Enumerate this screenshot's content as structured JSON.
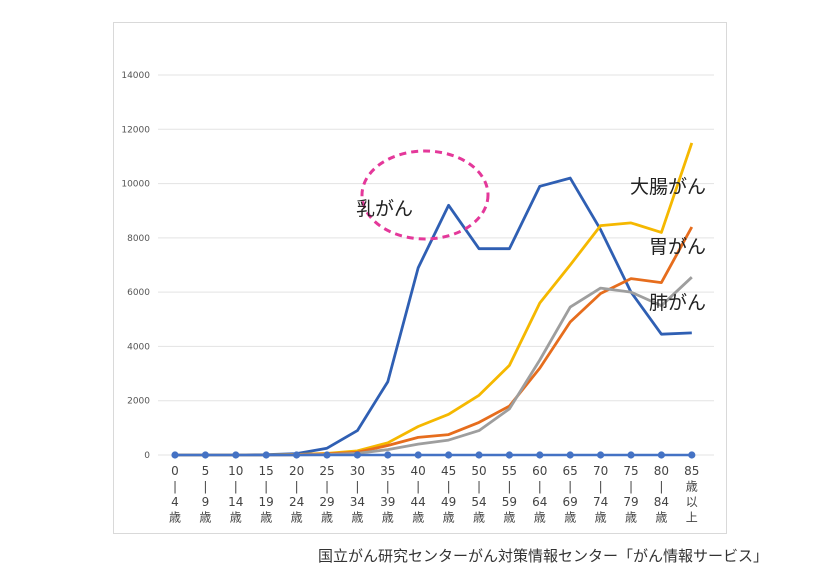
{
  "chart_data": {
    "type": "line",
    "categories": [
      "0\n|\n4\n歳",
      "5\n|\n9\n歳",
      "10\n|\n14\n歳",
      "15\n|\n19\n歳",
      "20\n|\n24\n歳",
      "25\n|\n29\n歳",
      "30\n|\n34\n歳",
      "35\n|\n39\n歳",
      "40\n|\n44\n歳",
      "45\n|\n49\n歳",
      "50\n|\n54\n歳",
      "55\n|\n59\n歳",
      "60\n|\n64\n歳",
      "65\n|\n69\n歳",
      "70\n|\n74\n歳",
      "75\n|\n79\n歳",
      "80\n|\n84\n歳",
      "85\n歳\n以\n上"
    ],
    "ylim": [
      0,
      14000
    ],
    "yticks": [
      "0",
      "2000",
      "4000",
      "6000",
      "8000",
      "10000",
      "12000",
      "14000"
    ],
    "grid": true,
    "series": [
      {
        "name": "乳がん",
        "color": "#2f5fb3",
        "values": [
          0,
          0,
          0,
          10,
          50,
          250,
          900,
          2700,
          6900,
          9200,
          7600,
          7600,
          9900,
          10200,
          8300,
          6000,
          4450,
          4500
        ]
      },
      {
        "name": "大腸がん",
        "color": "#f5b800",
        "values": [
          0,
          0,
          0,
          5,
          20,
          60,
          150,
          450,
          1050,
          1500,
          2200,
          3300,
          5600,
          7000,
          8450,
          8550,
          8200,
          11500
        ]
      },
      {
        "name": "胃がん",
        "color": "#e66d1d",
        "values": [
          0,
          0,
          0,
          0,
          10,
          40,
          100,
          350,
          650,
          750,
          1200,
          1800,
          3200,
          4900,
          5950,
          6500,
          6350,
          8400
        ]
      },
      {
        "name": "肺がん",
        "color": "#9e9e9e",
        "values": [
          0,
          0,
          0,
          0,
          5,
          20,
          60,
          200,
          400,
          550,
          900,
          1700,
          3500,
          5450,
          6150,
          6000,
          5500,
          6550
        ]
      }
    ],
    "baseline_color": "#4472c4",
    "highlight_color": "#e4389a"
  },
  "source": "国立がん研究センターがん対策情報センター「がん情報サービス」"
}
